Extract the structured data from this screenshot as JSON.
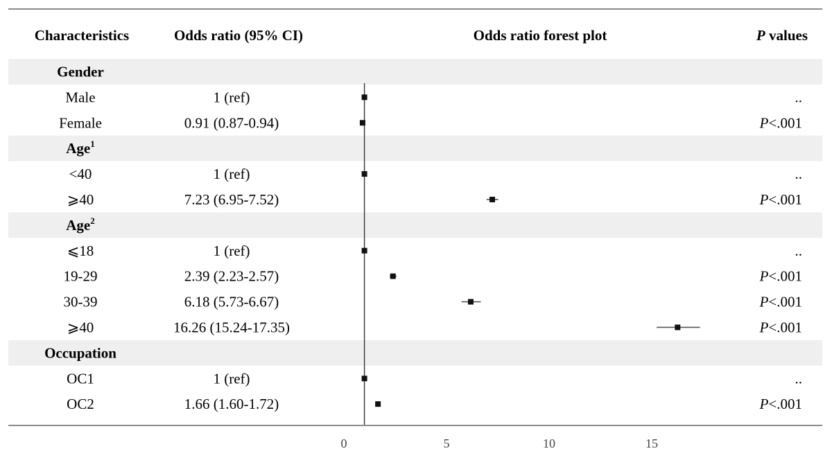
{
  "headers": {
    "characteristics": "Characteristics",
    "odds_ratio": "Odds ratio (95% CI)",
    "forest_plot": "Odds ratio forest plot",
    "p_values_italic": "P",
    "p_values_rest": " values"
  },
  "chart_data": {
    "type": "forest",
    "title": "Odds ratio forest plot",
    "xlim": [
      0,
      20
    ],
    "x_ticks": [
      0,
      5,
      10,
      15
    ],
    "reference_line": 1,
    "rows": [
      {
        "kind": "group",
        "label": "Gender",
        "sup": ""
      },
      {
        "kind": "item",
        "label": "Male",
        "or_text": "1 (ref)",
        "or": 1,
        "lo": 1,
        "hi": 1,
        "p_italic": "",
        "p_rest": ".."
      },
      {
        "kind": "item",
        "label": "Female",
        "or_text": "0.91 (0.87-0.94)",
        "or": 0.91,
        "lo": 0.87,
        "hi": 0.94,
        "p_italic": "P",
        "p_rest": "<.001"
      },
      {
        "kind": "group",
        "label": "Age",
        "sup": "1"
      },
      {
        "kind": "item",
        "label": "<40",
        "or_text": "1 (ref)",
        "or": 1,
        "lo": 1,
        "hi": 1,
        "p_italic": "",
        "p_rest": ".."
      },
      {
        "kind": "item",
        "label": "⩾40",
        "or_text": "7.23 (6.95-7.52)",
        "or": 7.23,
        "lo": 6.95,
        "hi": 7.52,
        "p_italic": "P",
        "p_rest": "<.001"
      },
      {
        "kind": "group",
        "label": "Age",
        "sup": "2"
      },
      {
        "kind": "item",
        "label": "⩽18",
        "or_text": "1 (ref)",
        "or": 1,
        "lo": 1,
        "hi": 1,
        "p_italic": "",
        "p_rest": ".."
      },
      {
        "kind": "item",
        "label": "19-29",
        "or_text": "2.39 (2.23-2.57)",
        "or": 2.39,
        "lo": 2.23,
        "hi": 2.57,
        "p_italic": "P",
        "p_rest": "<.001"
      },
      {
        "kind": "item",
        "label": "30-39",
        "or_text": "6.18 (5.73-6.67)",
        "or": 6.18,
        "lo": 5.73,
        "hi": 6.67,
        "p_italic": "P",
        "p_rest": "<.001"
      },
      {
        "kind": "item",
        "label": "⩾40",
        "or_text": "16.26 (15.24-17.35)",
        "or": 16.26,
        "lo": 15.24,
        "hi": 17.35,
        "p_italic": "P",
        "p_rest": "<.001"
      },
      {
        "kind": "group",
        "label": "Occupation",
        "sup": ""
      },
      {
        "kind": "item",
        "label": "OC1",
        "or_text": "1 (ref)",
        "or": 1,
        "lo": 1,
        "hi": 1,
        "p_italic": "",
        "p_rest": ".."
      },
      {
        "kind": "item",
        "label": "OC2",
        "or_text": "1.66 (1.60-1.72)",
        "or": 1.66,
        "lo": 1.6,
        "hi": 1.72,
        "p_italic": "P",
        "p_rest": "<.001"
      }
    ]
  },
  "colors": {
    "group_band": "#efefef",
    "rule": "#8a8a8a",
    "marker": "#111111",
    "ci_line": "#555555",
    "ref_line": "#333333"
  }
}
